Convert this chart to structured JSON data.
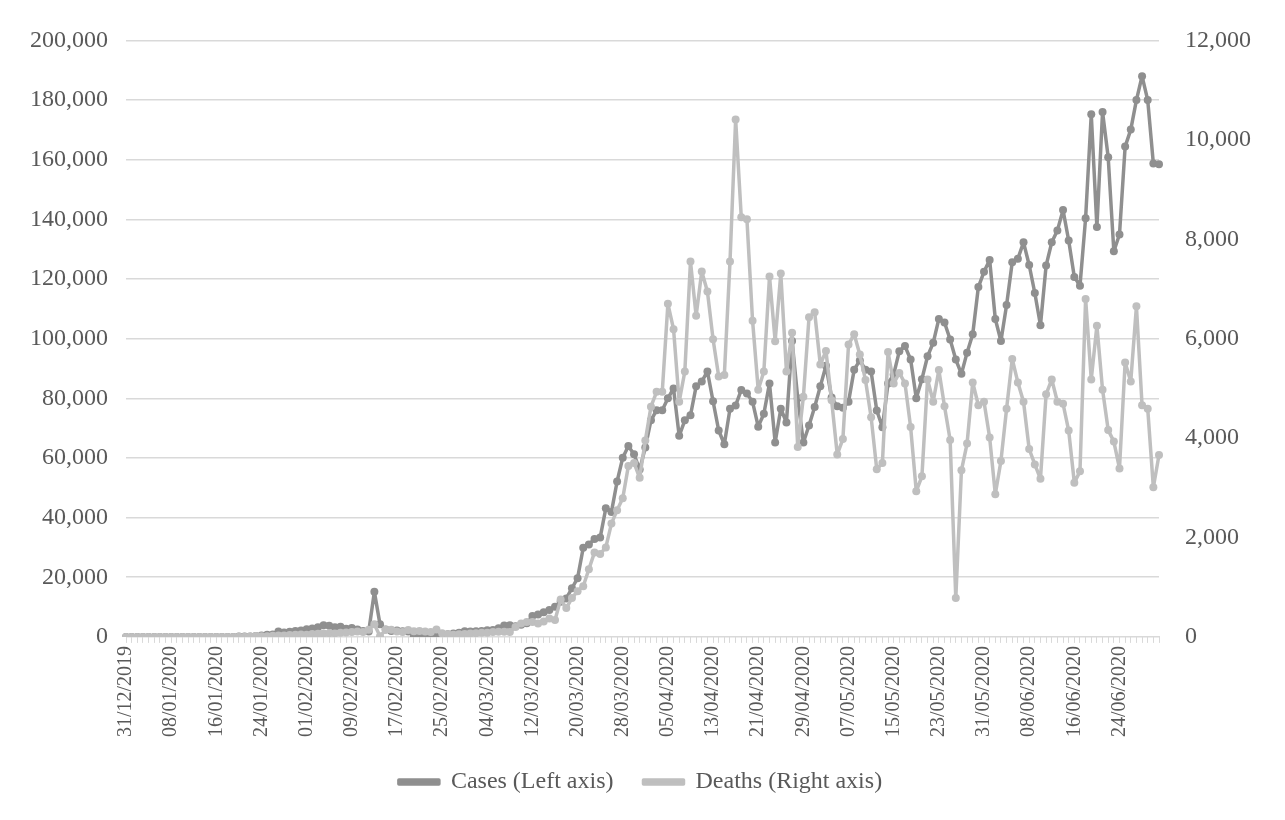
{
  "chart_data": {
    "type": "line",
    "categories": [
      "31/12/2019",
      null,
      null,
      null,
      null,
      null,
      null,
      null,
      "08/01/2020",
      null,
      null,
      null,
      null,
      null,
      null,
      null,
      "16/01/2020",
      null,
      null,
      null,
      null,
      null,
      null,
      null,
      "24/01/2020",
      null,
      null,
      null,
      null,
      null,
      null,
      null,
      "01/02/2020",
      null,
      null,
      null,
      null,
      null,
      null,
      null,
      "09/02/2020",
      null,
      null,
      null,
      null,
      null,
      null,
      null,
      "17/02/2020",
      null,
      null,
      null,
      null,
      null,
      null,
      null,
      "25/02/2020",
      null,
      null,
      null,
      null,
      null,
      null,
      null,
      "04/03/2020",
      null,
      null,
      null,
      null,
      null,
      null,
      null,
      "12/03/2020",
      null,
      null,
      null,
      null,
      null,
      null,
      null,
      "20/03/2020",
      null,
      null,
      null,
      null,
      null,
      null,
      null,
      "28/03/2020",
      null,
      null,
      null,
      null,
      null,
      null,
      null,
      "05/04/2020",
      null,
      null,
      null,
      null,
      null,
      null,
      null,
      "13/04/2020",
      null,
      null,
      null,
      null,
      null,
      null,
      null,
      "21/04/2020",
      null,
      null,
      null,
      null,
      null,
      null,
      null,
      "29/04/2020",
      null,
      null,
      null,
      null,
      null,
      null,
      null,
      "07/05/2020",
      null,
      null,
      null,
      null,
      null,
      null,
      null,
      "15/05/2020",
      null,
      null,
      null,
      null,
      null,
      null,
      null,
      "23/05/2020",
      null,
      null,
      null,
      null,
      null,
      null,
      null,
      "31/05/2020",
      null,
      null,
      null,
      null,
      null,
      null,
      null,
      "08/06/2020",
      null,
      null,
      null,
      null,
      null,
      null,
      null,
      "16/06/2020",
      null,
      null,
      null,
      null,
      null,
      null,
      null,
      "24/06/2020",
      null,
      null,
      null,
      null,
      null,
      null,
      null
    ],
    "series": [
      {
        "name": "Cases (Left axis)",
        "color": "#8f8f8f",
        "values": [
          0,
          0,
          0,
          0,
          0,
          0,
          0,
          0,
          0,
          0,
          0,
          0,
          0,
          0,
          0,
          0,
          0,
          0,
          0,
          0,
          100,
          150,
          100,
          300,
          500,
          700,
          800,
          1800,
          1500,
          1700,
          2000,
          2100,
          2600,
          2800,
          3200,
          3900,
          3700,
          3200,
          3400,
          2700,
          3000,
          2500,
          2000,
          1800,
          15100,
          4200,
          2500,
          2000,
          2100,
          1900,
          1800,
          400,
          900,
          1000,
          600,
          600,
          900,
          900,
          1100,
          1400,
          1900,
          1800,
          1900,
          2000,
          2200,
          2300,
          2900,
          3800,
          3900,
          3600,
          4100,
          4600,
          7000,
          7500,
          8300,
          9000,
          10100,
          11800,
          12900,
          16300,
          19700,
          29900,
          31000,
          32800,
          33300,
          43100,
          41900,
          52100,
          60100,
          64000,
          61200,
          56100,
          63500,
          72600,
          76000,
          76000,
          80000,
          83300,
          67400,
          72600,
          74300,
          84000,
          85600,
          89000,
          79000,
          69200,
          64600,
          76500,
          77600,
          82800,
          81600,
          78800,
          70500,
          74800,
          85000,
          65200,
          76500,
          71900,
          99200,
          80000,
          65200,
          70900,
          77100,
          84000,
          90900,
          80300,
          77300,
          76800,
          78800,
          89600,
          92700,
          89600,
          89000,
          75900,
          70300,
          85000,
          88000,
          95800,
          97500,
          93000,
          80000,
          86400,
          94100,
          98600,
          106600,
          105400,
          99700,
          93000,
          88200,
          95300,
          101500,
          117300,
          122400,
          126400,
          106600,
          99200,
          111300,
          125600,
          126800,
          132300,
          124700,
          115300,
          104500,
          124500,
          132300,
          136300,
          143100,
          132900,
          120700,
          117700,
          140400,
          175200,
          137400,
          176000,
          160800,
          129300,
          134900,
          164400,
          170100,
          180000,
          188000,
          180000,
          158700,
          158500
        ]
      },
      {
        "name": "Deaths (Right axis)",
        "color": "#bfbfbf",
        "axis": "y2",
        "values": [
          0,
          0,
          0,
          0,
          0,
          0,
          0,
          0,
          0,
          0,
          0,
          0,
          0,
          0,
          0,
          0,
          0,
          0,
          0,
          0,
          3,
          3,
          8,
          16,
          15,
          15,
          24,
          26,
          26,
          38,
          43,
          46,
          45,
          57,
          64,
          66,
          72,
          70,
          85,
          87,
          100,
          108,
          97,
          146,
          254,
          13,
          143,
          142,
          106,
          98,
          139,
          115,
          118,
          109,
          97,
          150,
          71,
          52,
          41,
          55,
          56,
          68,
          72,
          85,
          82,
          98,
          104,
          103,
          100,
          198,
          268,
          300,
          300,
          270,
          310,
          370,
          340,
          750,
          580,
          780,
          920,
          1020,
          1360,
          1700,
          1670,
          1800,
          2280,
          2550,
          2790,
          3440,
          3500,
          3200,
          3950,
          4630,
          4930,
          4930,
          6700,
          6190,
          4730,
          5340,
          7550,
          6460,
          7350,
          6950,
          5990,
          5240,
          5270,
          7550,
          10410,
          8440,
          8400,
          6360,
          4970,
          5340,
          7250,
          5950,
          7310,
          5340,
          6120,
          3820,
          4830,
          6430,
          6530,
          5480,
          5750,
          4760,
          3670,
          3980,
          5880,
          6090,
          5680,
          5170,
          4420,
          3370,
          3500,
          5730,
          5100,
          5310,
          5100,
          4220,
          2930,
          3230,
          5180,
          4730,
          5370,
          4640,
          3960,
          780,
          3350,
          3890,
          5120,
          4660,
          4730,
          4010,
          2870,
          3540,
          4590,
          5590,
          5120,
          4730,
          3780,
          3470,
          3180,
          4880,
          5180,
          4730,
          4690,
          4150,
          3100,
          3330,
          6800,
          5180,
          6260,
          4970,
          4160,
          3930,
          3390,
          5520,
          5140,
          6650,
          4660,
          4590,
          3010,
          3660
        ]
      }
    ],
    "ylim": [
      0,
      200000
    ],
    "yticks": [
      {
        "value": 0,
        "label": "0"
      },
      {
        "value": 20000,
        "label": "20,000"
      },
      {
        "value": 40000,
        "label": "40,000"
      },
      {
        "value": 60000,
        "label": "60,000"
      },
      {
        "value": 80000,
        "label": "80,000"
      },
      {
        "value": 100000,
        "label": "100,000"
      },
      {
        "value": 120000,
        "label": "120,000"
      },
      {
        "value": 140000,
        "label": "140,000"
      },
      {
        "value": 160000,
        "label": "160,000"
      },
      {
        "value": 180000,
        "label": "180,000"
      },
      {
        "value": 200000,
        "label": "200,000"
      }
    ],
    "y2lim": [
      0,
      12000
    ],
    "y2ticks": [
      {
        "value": 0,
        "label": "0"
      },
      {
        "value": 2000,
        "label": "2,000"
      },
      {
        "value": 4000,
        "label": "4,000"
      },
      {
        "value": 6000,
        "label": "6,000"
      },
      {
        "value": 8000,
        "label": "8,000"
      },
      {
        "value": 10000,
        "label": "10,000"
      },
      {
        "value": 12000,
        "label": "12,000"
      }
    ],
    "grid": "y",
    "legend": "bottom",
    "marker": "circle",
    "line_style": "solid"
  }
}
